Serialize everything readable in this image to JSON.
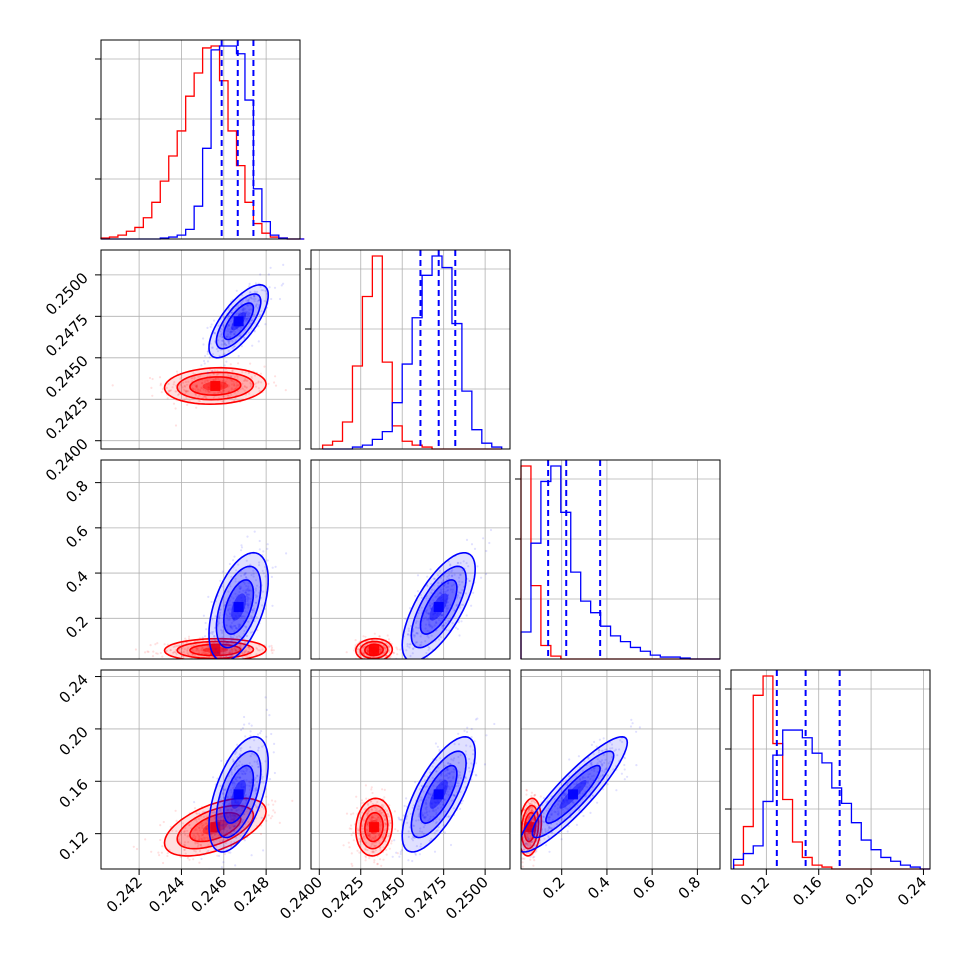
{
  "chart_data": {
    "type": "corner",
    "title": "",
    "parameters": [
      {
        "name": "",
        "range": [
          0.2402,
          0.2496
        ],
        "ticks": [
          0.242,
          0.244,
          0.246,
          0.248
        ],
        "tick_labels": [
          "0.242",
          "0.244",
          "0.246",
          "0.248"
        ]
      },
      {
        "name": "",
        "range": [
          0.2395,
          0.2515
        ],
        "ticks": [
          0.24,
          0.2425,
          0.245,
          0.2475,
          0.25
        ],
        "tick_labels": [
          "0.2400",
          "0.2425",
          "0.2450",
          "0.2475",
          "0.2500"
        ]
      },
      {
        "name": "",
        "range": [
          0.02,
          0.9
        ],
        "ticks": [
          0.2,
          0.4,
          0.6,
          0.8
        ],
        "tick_labels": [
          "0.2",
          "0.4",
          "0.6",
          "0.8"
        ]
      },
      {
        "name": "",
        "range": [
          0.093,
          0.245
        ],
        "ticks": [
          0.12,
          0.16,
          0.2,
          0.24
        ],
        "tick_labels": [
          "0.12",
          "0.16",
          "0.20",
          "0.24"
        ]
      }
    ],
    "series": [
      {
        "color": "#ff0000",
        "means": [
          0.2456,
          0.2433,
          0.06,
          0.125
        ],
        "stds": [
          0.0012,
          0.00055,
          0.025,
          0.011
        ],
        "histograms": [
          {
            "bins": [
              0.2402,
              0.2406,
              0.241,
              0.2414,
              0.2418,
              0.2422,
              0.2426,
              0.243,
              0.2434,
              0.2438,
              0.2442,
              0.2446,
              0.245,
              0.2454,
              0.2458,
              0.2462,
              0.2466,
              0.247,
              0.2474,
              0.2478,
              0.2482,
              0.2486,
              0.249,
              0.2494,
              0.2498
            ],
            "counts": [
              0.5,
              1,
              2,
              4,
              6,
              11,
              19,
              30,
              43,
              56,
              74,
              86,
              99,
              100,
              82,
              56,
              38,
              19,
              8,
              3,
              1,
              0.5,
              0,
              0
            ]
          },
          {
            "bins": [
              0.2402,
              0.2408,
              0.2414,
              0.242,
              0.2426,
              0.2432,
              0.2438,
              0.2444,
              0.245,
              0.2456,
              0.2462,
              0.2468,
              0.2474,
              0.248,
              0.2486,
              0.2492,
              0.2498,
              0.2504,
              0.251
            ],
            "counts": [
              2,
              4,
              14,
              43,
              79,
              100,
              45,
              12,
              4,
              2,
              1,
              0,
              0,
              0,
              0,
              0,
              0,
              0
            ]
          },
          {
            "bins": [
              0.02,
              0.064,
              0.108,
              0.152,
              0.196,
              0.24,
              0.284,
              0.328,
              0.372,
              0.416,
              0.46,
              0.504,
              0.548,
              0.592,
              0.636,
              0.68,
              0.724,
              0.768,
              0.812,
              0.856,
              0.9
            ],
            "counts": [
              100,
              38,
              7,
              1.5,
              0,
              0,
              0,
              0,
              0,
              0,
              0,
              0,
              0,
              0,
              0,
              0,
              0,
              0,
              0,
              0
            ]
          },
          {
            "bins": [
              0.095,
              0.1025,
              0.11,
              0.1175,
              0.125,
              0.1325,
              0.14,
              0.1475,
              0.155,
              0.1625,
              0.17,
              0.1775,
              0.185,
              0.1925,
              0.2,
              0.2075,
              0.215,
              0.2225,
              0.23,
              0.2375,
              0.245
            ],
            "counts": [
              2,
              22,
              90,
              100,
              65,
              36,
              14,
              6,
              2,
              1,
              0,
              0,
              0,
              0,
              0,
              0,
              0,
              0,
              0,
              0
            ]
          }
        ]
      },
      {
        "color": "#0000ff",
        "means": [
          0.2467,
          0.2472,
          0.25,
          0.15
        ],
        "stds": [
          0.0007,
          0.0011,
          0.12,
          0.022
        ],
        "quantiles": [
          [
            0.2459,
            0.24666,
            0.2474
          ],
          [
            0.2461,
            0.2472,
            0.2482
          ],
          [
            0.14,
            0.22,
            0.37
          ],
          [
            0.128,
            0.15,
            0.176
          ]
        ],
        "histograms": [
          {
            "bins": [
              0.2402,
              0.2406,
              0.241,
              0.2414,
              0.2418,
              0.2422,
              0.2426,
              0.243,
              0.2434,
              0.2438,
              0.2442,
              0.2446,
              0.245,
              0.2454,
              0.2458,
              0.2462,
              0.2466,
              0.247,
              0.2474,
              0.2478,
              0.2482,
              0.2486,
              0.249,
              0.2494,
              0.2498
            ],
            "counts": [
              0,
              0,
              0,
              0,
              0,
              0,
              0,
              0.5,
              1,
              2,
              5,
              17,
              47,
              98,
              100,
              100,
              96,
              72,
              26,
              9,
              2,
              0.5,
              0,
              0
            ]
          },
          {
            "bins": [
              0.2402,
              0.2408,
              0.2414,
              0.242,
              0.2426,
              0.2432,
              0.2438,
              0.2444,
              0.245,
              0.2456,
              0.2462,
              0.2468,
              0.2474,
              0.248,
              0.2486,
              0.2492,
              0.2498,
              0.2504,
              0.251
            ],
            "counts": [
              0,
              0,
              0,
              1,
              2,
              5,
              9,
              24,
              44,
              68,
              90,
              100,
              94,
              65,
              30,
              10,
              3,
              1
            ]
          },
          {
            "bins": [
              0.02,
              0.064,
              0.108,
              0.152,
              0.196,
              0.24,
              0.284,
              0.328,
              0.372,
              0.416,
              0.46,
              0.504,
              0.548,
              0.592,
              0.636,
              0.68,
              0.724,
              0.768,
              0.812,
              0.856,
              0.9
            ],
            "counts": [
              14,
              60,
              92,
              100,
              76,
              45,
              30,
              24,
              17,
              12,
              9,
              6,
              4,
              2,
              1,
              1,
              0.5,
              0,
              0,
              0
            ]
          },
          {
            "bins": [
              0.095,
              0.1025,
              0.11,
              0.1175,
              0.125,
              0.1325,
              0.14,
              0.1475,
              0.155,
              0.1625,
              0.17,
              0.1775,
              0.185,
              0.1925,
              0.2,
              0.2075,
              0.215,
              0.2225,
              0.23,
              0.2375,
              0.245
            ],
            "counts": [
              5,
              8,
              12,
              35,
              59,
              72,
              72,
              68,
              60,
              55,
              42,
              34,
              24,
              15,
              10,
              6,
              4,
              2,
              1,
              0
            ]
          }
        ]
      }
    ]
  }
}
